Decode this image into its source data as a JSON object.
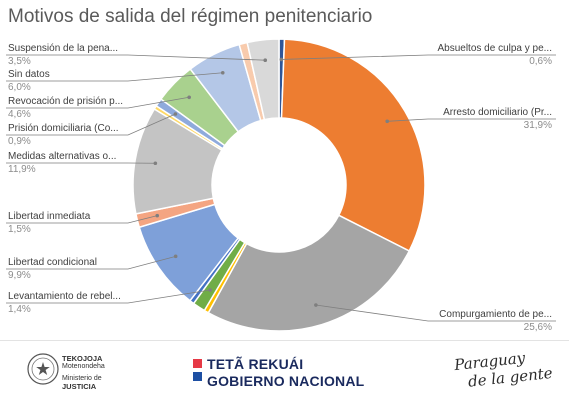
{
  "chart_data": {
    "type": "pie",
    "title": "Motivos de salida del régimen penitenciario",
    "donut": true,
    "start_angle_deg": 0,
    "slices": [
      {
        "label": "Absueltos de culpa y pe...",
        "value": 0.6,
        "value_text": "0,6%",
        "color": "#2f5597"
      },
      {
        "label": "Arresto domiciliario (Pr...",
        "value": 31.9,
        "value_text": "31,9%",
        "color": "#ed7d31"
      },
      {
        "label": "Compurgamiento de pe...",
        "value": 25.6,
        "value_text": "25,6%",
        "color": "#a5a5a5"
      },
      {
        "label": "",
        "value": 0.5,
        "value_text": "",
        "color": "#ffc000"
      },
      {
        "label": "Levantamiento de rebel...",
        "value": 1.4,
        "value_text": "1,4%",
        "color": "#70ad47"
      },
      {
        "label": "",
        "value": 0.5,
        "value_text": "",
        "color": "#4472c4"
      },
      {
        "label": "Libertad condicional",
        "value": 9.9,
        "value_text": "9,9%",
        "color": "#7ea0d9"
      },
      {
        "label": "Libertad inmediata",
        "value": 1.5,
        "value_text": "1,5%",
        "color": "#f4a582"
      },
      {
        "label": "Medidas alternativas o...",
        "value": 11.9,
        "value_text": "11,9%",
        "color": "#c4c4c4"
      },
      {
        "label": "",
        "value": 0.4,
        "value_text": "",
        "color": "#ffd966"
      },
      {
        "label": "Prisión domiciliaria (Co...",
        "value": 0.9,
        "value_text": "0,9%",
        "color": "#8faadc"
      },
      {
        "label": "Revocación de prisión p...",
        "value": 4.6,
        "value_text": "4,6%",
        "color": "#a9d18e"
      },
      {
        "label": "Sin datos",
        "value": 6.0,
        "value_text": "6,0%",
        "color": "#b4c7e7"
      },
      {
        "label": "",
        "value": 0.9,
        "value_text": "",
        "color": "#f8cbad"
      },
      {
        "label": "Suspensión de la pena...",
        "value": 3.5,
        "value_text": "3,5%",
        "color": "#d9d9d9"
      }
    ]
  },
  "footer": {
    "ministry_line1": "TEKOJOJA",
    "ministry_line2": "Motenondeha",
    "ministry_line3": "Ministerio de",
    "ministry_line4": "JUSTICIA",
    "gov_line1": "TETÃ REKUÁI",
    "gov_line2": "GOBIERNO NACIONAL",
    "gov_colors": [
      "#e63946",
      "#1d4fa3"
    ],
    "slogan_line1": "Paraguay",
    "slogan_line2": "de la gente",
    "seal_icon": "paraguay-seal-icon"
  }
}
